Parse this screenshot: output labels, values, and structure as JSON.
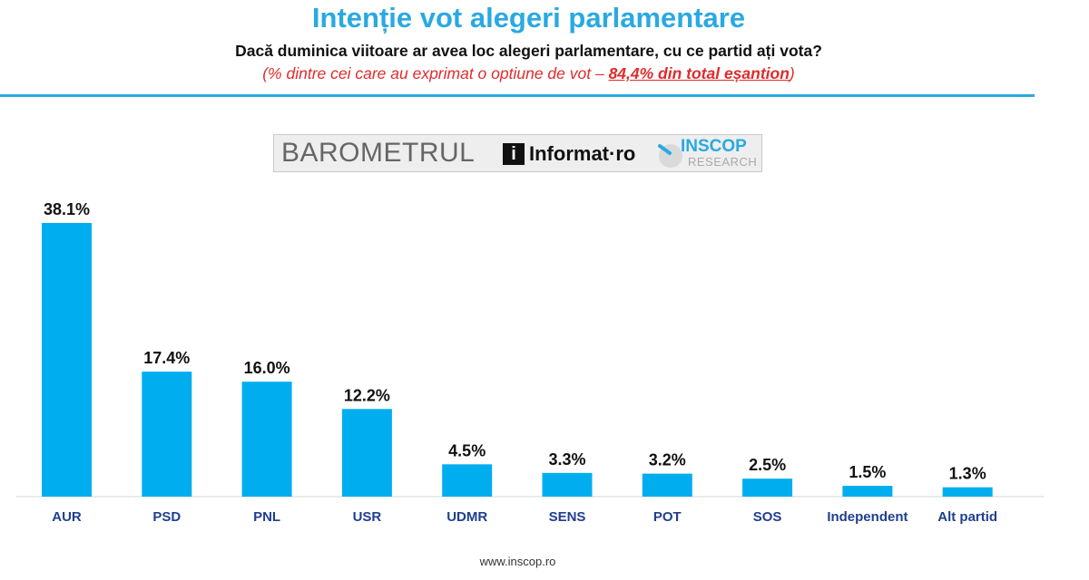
{
  "header": {
    "title": "Intenție vot alegeri parlamentare",
    "subtitle": "Dacă duminica viitoare ar avea loc alegeri parlamentare, cu ce partid ați vota?",
    "note_open": "(% dintre cei care au exprimat o optiune de vot – ",
    "note_emphasis": "84,4% din total eșantion",
    "note_close": ")"
  },
  "banner": {
    "barometer": "BAROMETRUL",
    "informat_logo_letter": "i",
    "informat": "Informat·ro",
    "inscop": "INSCOP",
    "research": "RESEARCH"
  },
  "footer": {
    "url": "www.inscop.ro"
  },
  "colors": {
    "accent": "#29a9e1",
    "bar": "#00aeef",
    "note": "#e02b2b",
    "text": "#111111"
  },
  "chart_data": {
    "type": "bar",
    "categories": [
      "AUR",
      "PSD",
      "PNL",
      "USR",
      "UDMR",
      "SENS",
      "POT",
      "SOS",
      "Independent",
      "Alt partid"
    ],
    "values": [
      38.1,
      17.4,
      16.0,
      12.2,
      4.5,
      3.3,
      3.2,
      2.5,
      1.5,
      1.3
    ],
    "value_labels": [
      "38.1%",
      "17.4%",
      "16.0%",
      "12.2%",
      "4.5%",
      "3.3%",
      "3.2%",
      "2.5%",
      "1.5%",
      "1.3%"
    ],
    "ylim": [
      0,
      38.1
    ],
    "grid": false,
    "legend": "none"
  }
}
